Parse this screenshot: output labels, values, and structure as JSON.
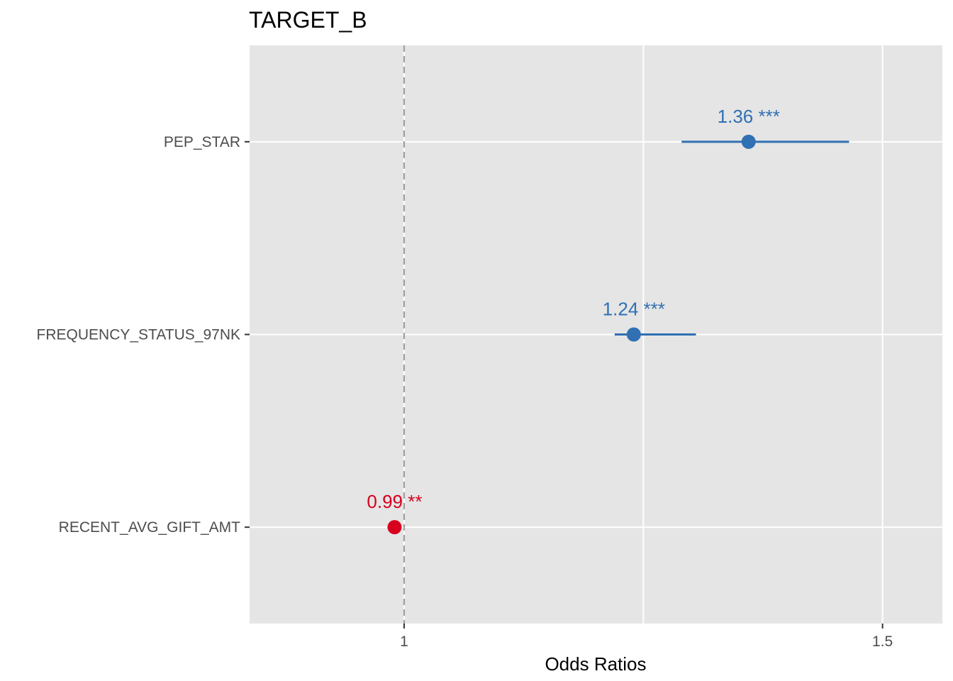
{
  "chart_data": {
    "type": "scatter",
    "title": "TARGET_B",
    "xlabel": "Odds Ratios",
    "ylabel": "",
    "xlim": [
      0.8385,
      1.5625
    ],
    "x_ticks": [
      {
        "value": 1,
        "label": "1"
      },
      {
        "value": 1.5,
        "label": "1.5"
      }
    ],
    "x_minor_gridlines": [
      1.25
    ],
    "reference_line": 1,
    "grid": true,
    "colors": {
      "positive": "#3070b3",
      "negative": "#d7001e",
      "panel": "#e5e5e5",
      "grid": "#ffffff",
      "reference": "#a0a0a0"
    },
    "points": [
      {
        "term": "PEP_STAR",
        "estimate": 1.36,
        "conf_low": 1.29,
        "conf_high": 1.465,
        "label": "1.36 ***",
        "group": "positive"
      },
      {
        "term": "FREQUENCY_STATUS_97NK",
        "estimate": 1.24,
        "conf_low": 1.22,
        "conf_high": 1.305,
        "label": "1.24 ***",
        "group": "positive"
      },
      {
        "term": "RECENT_AVG_GIFT_AMT",
        "estimate": 0.99,
        "conf_low": 0.99,
        "conf_high": 0.99,
        "label": "0.99 **",
        "group": "negative"
      }
    ]
  }
}
